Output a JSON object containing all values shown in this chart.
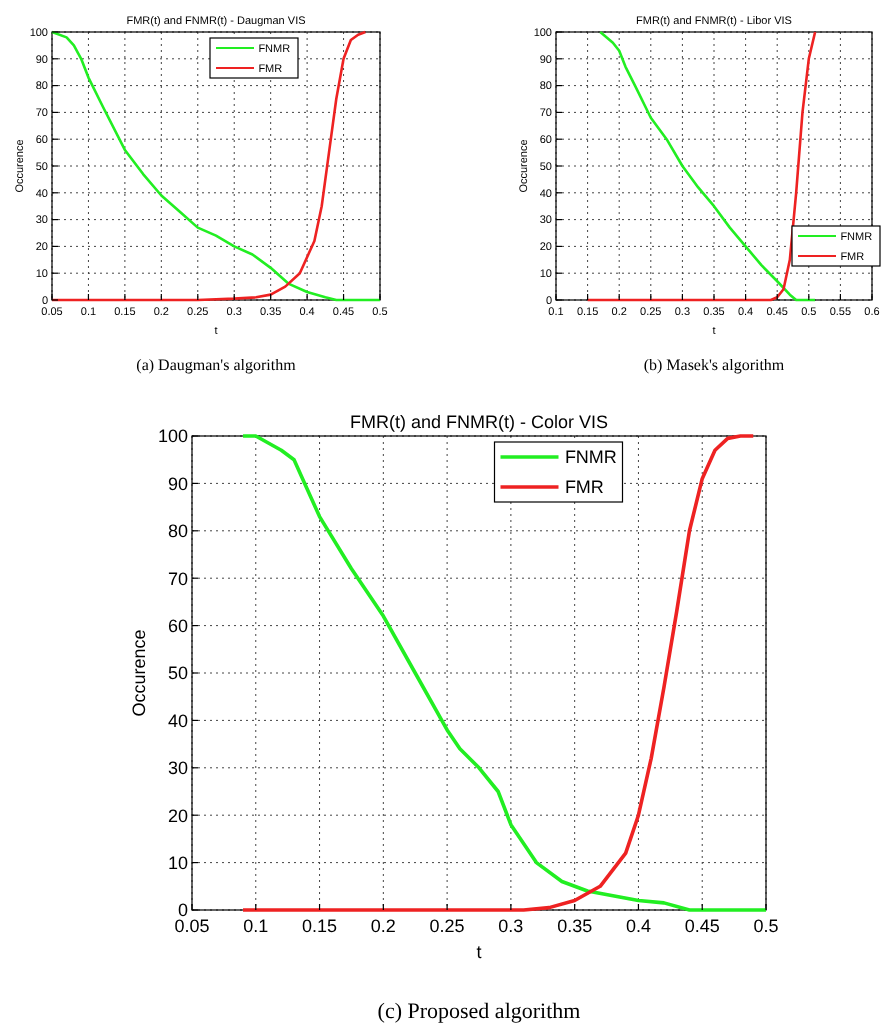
{
  "chart_data": [
    {
      "type": "line",
      "title": "FMR(t) and FNMR(t) - Daugman VIS",
      "xlabel": "t",
      "ylabel": "Occurence",
      "annotations": [
        "(a) Daugman's algorithm"
      ],
      "xlim": [
        0.05,
        0.5
      ],
      "ylim": [
        0,
        100
      ],
      "xticks": [
        0.05,
        0.1,
        0.15,
        0.2,
        0.25,
        0.3,
        0.35,
        0.4,
        0.45,
        0.5
      ],
      "yticks": [
        0,
        10,
        20,
        30,
        40,
        50,
        60,
        70,
        80,
        90,
        100
      ],
      "grid": true,
      "legend": "top right",
      "series": [
        {
          "name": "FNMR",
          "color": "#22ee22",
          "x": [
            0.05,
            0.07,
            0.08,
            0.09,
            0.1,
            0.12,
            0.15,
            0.175,
            0.2,
            0.225,
            0.25,
            0.275,
            0.3,
            0.325,
            0.35,
            0.375,
            0.4,
            0.425,
            0.44,
            0.5
          ],
          "values": [
            100,
            98,
            95,
            90,
            83,
            72,
            56,
            47,
            39,
            33,
            27,
            24,
            20,
            17,
            12,
            6,
            3,
            1,
            0,
            0
          ]
        },
        {
          "name": "FMR",
          "color": "#ee2222",
          "x": [
            0.05,
            0.25,
            0.3,
            0.33,
            0.35,
            0.37,
            0.39,
            0.41,
            0.42,
            0.43,
            0.44,
            0.45,
            0.46,
            0.47,
            0.48
          ],
          "values": [
            0,
            0,
            0.5,
            1,
            2,
            5,
            10,
            22,
            35,
            55,
            75,
            90,
            97,
            99,
            100
          ]
        }
      ]
    },
    {
      "type": "line",
      "title": "FMR(t) and FNMR(t) - Libor VIS",
      "xlabel": "t",
      "ylabel": "Occurence",
      "annotations": [
        "(b) Masek's algorithm"
      ],
      "xlim": [
        0.1,
        0.6
      ],
      "ylim": [
        0,
        100
      ],
      "xticks": [
        0.1,
        0.15,
        0.2,
        0.25,
        0.3,
        0.35,
        0.4,
        0.45,
        0.5,
        0.55,
        0.6
      ],
      "yticks": [
        0,
        10,
        20,
        30,
        40,
        50,
        60,
        70,
        80,
        90,
        100
      ],
      "grid": true,
      "legend": "right",
      "series": [
        {
          "name": "FNMR",
          "color": "#22ee22",
          "x": [
            0.17,
            0.19,
            0.2,
            0.21,
            0.225,
            0.25,
            0.275,
            0.3,
            0.325,
            0.35,
            0.375,
            0.4,
            0.425,
            0.45,
            0.47,
            0.48,
            0.51
          ],
          "values": [
            100,
            96,
            93,
            87,
            80,
            68,
            60,
            50,
            42,
            35,
            27,
            20,
            13,
            7,
            2,
            0,
            0
          ]
        },
        {
          "name": "FMR",
          "color": "#ee2222",
          "x": [
            0.15,
            0.44,
            0.45,
            0.46,
            0.47,
            0.48,
            0.49,
            0.5,
            0.51
          ],
          "values": [
            0,
            0,
            1,
            4,
            15,
            40,
            70,
            90,
            100
          ]
        }
      ]
    },
    {
      "type": "line",
      "title": "FMR(t) and FNMR(t) - Color VIS",
      "xlabel": "t",
      "ylabel": "Occurence",
      "annotations": [
        "(c) Proposed algorithm"
      ],
      "xlim": [
        0.05,
        0.5
      ],
      "ylim": [
        0,
        100
      ],
      "xticks": [
        0.05,
        0.1,
        0.15,
        0.2,
        0.25,
        0.3,
        0.35,
        0.4,
        0.45,
        0.5
      ],
      "yticks": [
        0,
        10,
        20,
        30,
        40,
        50,
        60,
        70,
        80,
        90,
        100
      ],
      "grid": true,
      "legend": "top right",
      "series": [
        {
          "name": "FNMR",
          "color": "#22ee22",
          "x": [
            0.09,
            0.1,
            0.12,
            0.13,
            0.14,
            0.15,
            0.175,
            0.2,
            0.225,
            0.25,
            0.26,
            0.275,
            0.29,
            0.3,
            0.32,
            0.34,
            0.36,
            0.38,
            0.4,
            0.42,
            0.44,
            0.5
          ],
          "values": [
            100,
            100,
            97,
            95,
            89,
            83,
            72,
            62,
            50,
            38,
            34,
            30,
            25,
            18,
            10,
            6,
            4,
            3,
            2,
            1.5,
            0,
            0
          ]
        },
        {
          "name": "FMR",
          "color": "#ee2222",
          "x": [
            0.09,
            0.31,
            0.33,
            0.35,
            0.37,
            0.39,
            0.4,
            0.41,
            0.42,
            0.43,
            0.44,
            0.45,
            0.46,
            0.47,
            0.48,
            0.49
          ],
          "values": [
            0,
            0,
            0.5,
            2,
            5,
            12,
            20,
            32,
            47,
            63,
            80,
            91,
            97,
            99.5,
            100,
            100
          ]
        }
      ]
    }
  ]
}
